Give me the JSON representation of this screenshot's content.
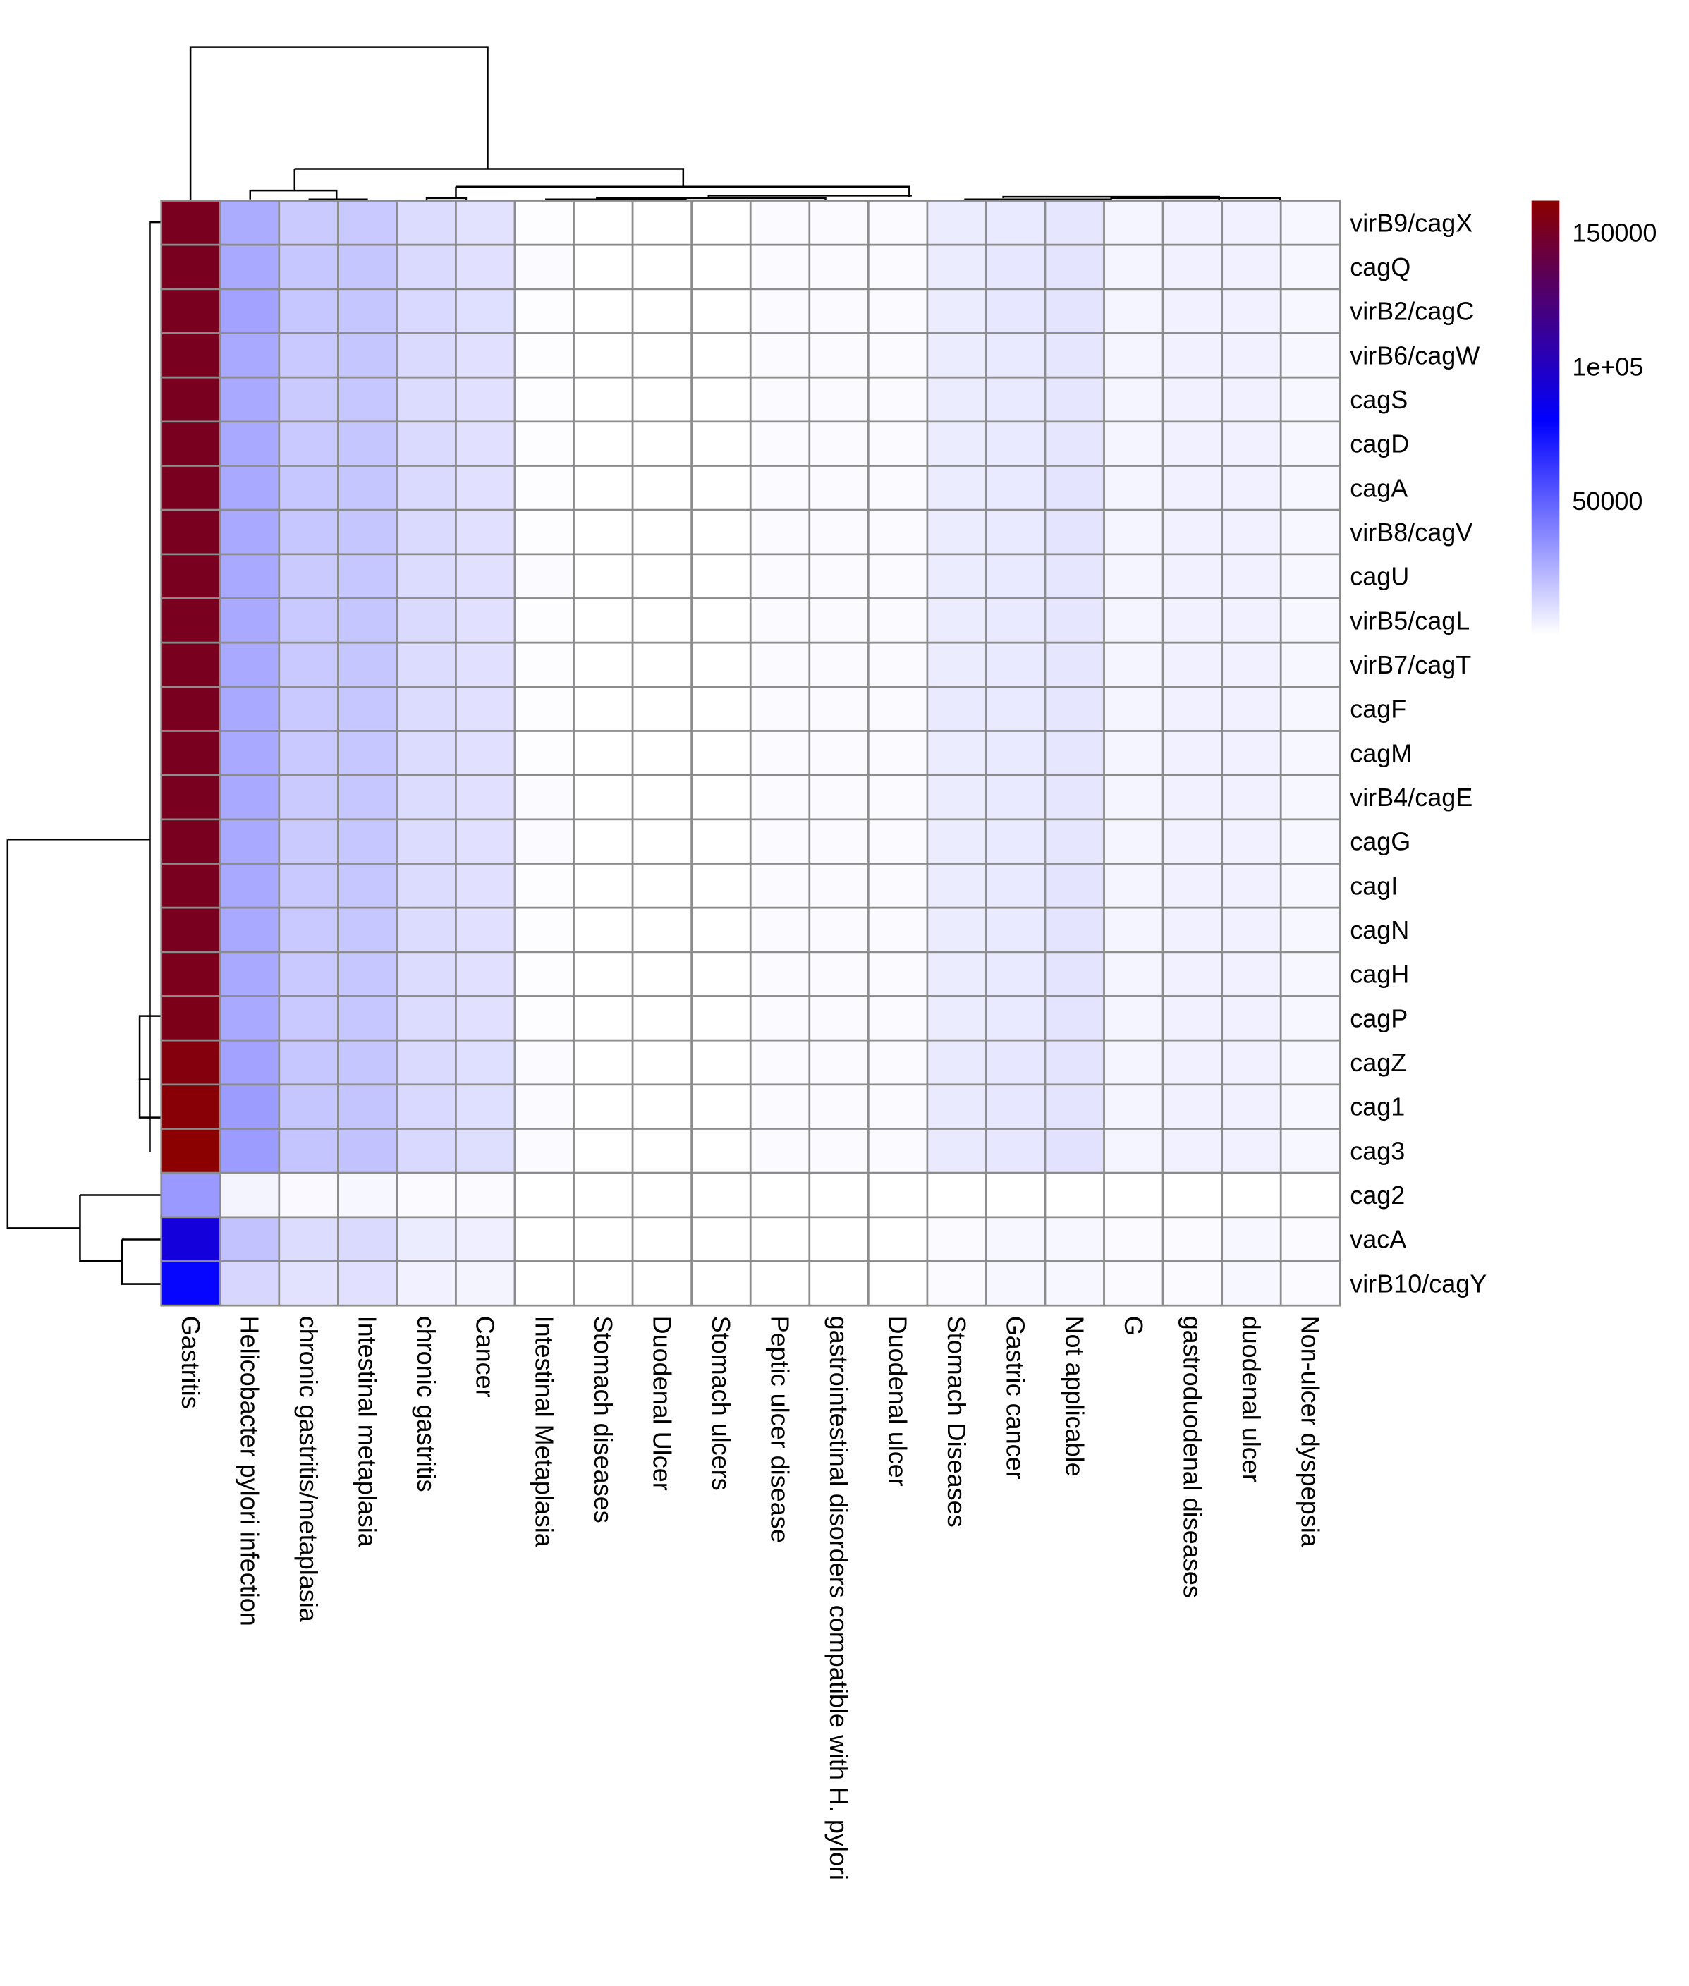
{
  "chart_data": {
    "type": "heatmap",
    "title": "",
    "xlabel": "",
    "ylabel": "",
    "columns": [
      "Gastritis",
      "Helicobacter pylori infection",
      "chronic gastritis/metaplasia",
      "Intestinal metaplasia",
      "chronic gastritis",
      "Cancer",
      "Intestinal Metaplasia",
      "Stomach diseases",
      "Duodenal Ulcer",
      "Stomach ulcers",
      "Peptic ulcer disease",
      "gastrointestinal disorders compatible with H. pylori",
      "Duodenal ulcer",
      "Stomach Diseases",
      "Gastric cancer",
      "Not applicable",
      "G",
      "gastroduodenal diseases",
      "duodenal ulcer",
      "Non-ulcer dyspepsia"
    ],
    "rows": [
      "virB9/cagX",
      "cagQ",
      "virB2/cagC",
      "virB6/cagW",
      "cagS",
      "cagD",
      "cagA",
      "virB8/cagV",
      "cagU",
      "virB5/cagL",
      "virB7/cagT",
      "cagF",
      "cagM",
      "virB4/cagE",
      "cagG",
      "cagI",
      "cagN",
      "cagH",
      "cagP",
      "cagZ",
      "cag1",
      "cag3",
      "cag2",
      "vacA",
      "virB10/cagY"
    ],
    "values": [
      [
        152000,
        26000,
        16500,
        17000,
        11000,
        9000,
        500,
        0,
        0,
        0,
        1500,
        1500,
        1500,
        6000,
        7000,
        8000,
        3000,
        4500,
        4500,
        2500
      ],
      [
        152000,
        27000,
        17500,
        18000,
        11500,
        9500,
        1500,
        0,
        0,
        0,
        1500,
        1500,
        1500,
        6000,
        7500,
        8500,
        3000,
        4500,
        4500,
        2500
      ],
      [
        152000,
        29000,
        17500,
        18000,
        12000,
        10000,
        500,
        0,
        0,
        0,
        1500,
        1500,
        1500,
        6000,
        7500,
        8500,
        3000,
        4500,
        4500,
        2500
      ],
      [
        152000,
        27000,
        17000,
        18000,
        11500,
        9500,
        500,
        0,
        0,
        0,
        1500,
        1500,
        1500,
        6000,
        7000,
        8000,
        3000,
        4500,
        4500,
        2500
      ],
      [
        152000,
        27000,
        16500,
        17500,
        11000,
        9500,
        500,
        0,
        0,
        0,
        1500,
        1500,
        1500,
        6000,
        7000,
        8000,
        3000,
        4500,
        4500,
        2500
      ],
      [
        152000,
        27000,
        17000,
        18000,
        11500,
        9500,
        500,
        0,
        0,
        0,
        1500,
        1500,
        1500,
        6000,
        7000,
        8000,
        3000,
        4500,
        4500,
        2500
      ],
      [
        152000,
        27000,
        17500,
        18000,
        11500,
        9500,
        500,
        0,
        0,
        0,
        1500,
        1500,
        1500,
        6000,
        7000,
        8500,
        3000,
        4500,
        4500,
        2500
      ],
      [
        152000,
        27000,
        17500,
        18000,
        11500,
        9500,
        500,
        0,
        0,
        0,
        1500,
        1500,
        1500,
        6000,
        7000,
        8500,
        3000,
        4500,
        4500,
        2500
      ],
      [
        152000,
        27000,
        16500,
        17500,
        11000,
        9500,
        1500,
        0,
        0,
        0,
        1500,
        1500,
        1500,
        6000,
        7000,
        8000,
        3000,
        4500,
        4500,
        2500
      ],
      [
        152000,
        27000,
        17000,
        18000,
        11500,
        9500,
        500,
        0,
        0,
        0,
        1500,
        1500,
        1500,
        6000,
        7000,
        8000,
        3000,
        4500,
        4500,
        2500
      ],
      [
        152000,
        27000,
        17000,
        18000,
        11000,
        9500,
        500,
        0,
        0,
        0,
        1500,
        1500,
        1500,
        6000,
        7000,
        8000,
        3000,
        4500,
        4500,
        2500
      ],
      [
        152000,
        27000,
        17000,
        17500,
        11000,
        9500,
        500,
        0,
        0,
        0,
        1500,
        1500,
        1500,
        6500,
        7000,
        8000,
        3000,
        4500,
        4500,
        2500
      ],
      [
        152000,
        27000,
        17000,
        17500,
        11000,
        9500,
        500,
        0,
        0,
        0,
        1500,
        1500,
        1500,
        6000,
        7000,
        8000,
        3000,
        4500,
        4500,
        2500
      ],
      [
        152000,
        27000,
        16500,
        17500,
        11000,
        9500,
        1500,
        0,
        0,
        0,
        1500,
        1500,
        1500,
        6000,
        7000,
        8000,
        3000,
        4500,
        4500,
        2500
      ],
      [
        152000,
        27000,
        16500,
        17500,
        11000,
        9500,
        1500,
        0,
        0,
        0,
        1500,
        1500,
        1500,
        6000,
        7000,
        8000,
        3000,
        4500,
        4500,
        2500
      ],
      [
        152000,
        27000,
        17000,
        17500,
        11000,
        9500,
        500,
        0,
        0,
        0,
        1500,
        1500,
        1500,
        6000,
        7000,
        8500,
        3000,
        4500,
        4500,
        2500
      ],
      [
        152000,
        27000,
        17000,
        17500,
        11000,
        9500,
        500,
        0,
        0,
        0,
        1500,
        1500,
        1500,
        6000,
        7000,
        8500,
        3000,
        4500,
        4500,
        2500
      ],
      [
        153000,
        27000,
        17000,
        17500,
        11000,
        9500,
        500,
        0,
        0,
        0,
        1500,
        1500,
        1500,
        6000,
        7000,
        8500,
        3000,
        4500,
        4500,
        2500
      ],
      [
        154000,
        27000,
        17000,
        17500,
        11000,
        9500,
        500,
        0,
        0,
        0,
        1500,
        1500,
        1500,
        6000,
        7000,
        8500,
        3000,
        4500,
        4500,
        2500
      ],
      [
        158000,
        29000,
        17500,
        18000,
        11500,
        10000,
        1500,
        0,
        0,
        0,
        1500,
        1500,
        1500,
        6500,
        7500,
        8500,
        3000,
        4500,
        4500,
        2500
      ],
      [
        160000,
        31000,
        18000,
        18500,
        12000,
        10000,
        1500,
        0,
        0,
        0,
        1500,
        1500,
        1500,
        6500,
        7500,
        8500,
        3000,
        4500,
        4500,
        2500
      ],
      [
        162000,
        31000,
        18500,
        19000,
        12000,
        10500,
        1500,
        0,
        0,
        0,
        1500,
        1500,
        1500,
        6500,
        7500,
        9000,
        3000,
        4500,
        4500,
        2500
      ],
      [
        32000,
        3500,
        2000,
        2500,
        1500,
        1500,
        0,
        0,
        0,
        0,
        0,
        0,
        0,
        0,
        0,
        0,
        0,
        0,
        0,
        0
      ],
      [
        92000,
        19000,
        11000,
        11500,
        6000,
        5000,
        0,
        0,
        0,
        0,
        0,
        0,
        0,
        1500,
        2500,
        2500,
        1500,
        1500,
        2500,
        1500
      ],
      [
        78000,
        13000,
        9000,
        9500,
        4500,
        3500,
        0,
        0,
        0,
        0,
        0,
        0,
        0,
        1500,
        2500,
        2500,
        1500,
        1500,
        2500,
        1500
      ]
    ],
    "color_scale": {
      "stops": [
        {
          "value": 0,
          "color": "#ffffff"
        },
        {
          "value": 80000,
          "color": "#0000ff"
        },
        {
          "value": 162000,
          "color": "#8b0000"
        }
      ],
      "min": 0,
      "max": 162000
    },
    "legend": {
      "position": "right",
      "ticks": [
        {
          "value": 50000,
          "label": "50000"
        },
        {
          "value": 100000,
          "label": "1e+05"
        },
        {
          "value": 150000,
          "label": "150000"
        }
      ]
    },
    "cell_border_color": "#8c8c8c",
    "dendrogram_color": "#000000"
  }
}
